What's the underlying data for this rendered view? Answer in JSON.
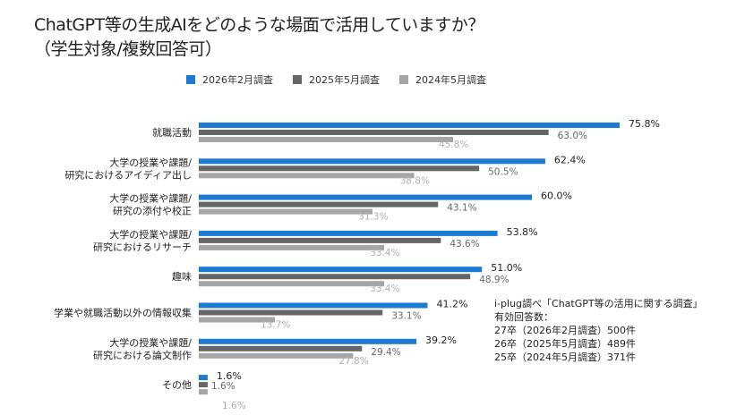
{
  "chart_data": {
    "type": "bar",
    "orientation": "horizontal",
    "title": "ChatGPT等の生成AIをどのような場面で活用していますか？",
    "subtitle": "（学生対象/複数回答可）",
    "categories": [
      [
        "就職活動"
      ],
      [
        "大学の授業や課題/",
        "研究におけるアイディア出し"
      ],
      [
        "大学の授業や課題/",
        "研究の添付や校正"
      ],
      [
        "大学の授業や課題/",
        "研究におけるリサーチ"
      ],
      [
        "趣味"
      ],
      [
        "学業や就職活動以外の情報収集"
      ],
      [
        "大学の授業や課題/",
        "研究における論文制作"
      ],
      [
        "その他"
      ]
    ],
    "series": [
      {
        "name": "2026年2月調査",
        "color": "#1a7ad4",
        "values": [
          75.8,
          62.4,
          60.0,
          53.8,
          51.0,
          41.2,
          39.2,
          1.6
        ]
      },
      {
        "name": "2025年5月調査",
        "color": "#666666",
        "values": [
          63.0,
          50.5,
          43.1,
          43.6,
          48.9,
          33.1,
          29.4,
          1.6
        ]
      },
      {
        "name": "2024年5月調査",
        "color": "#a6a6a6",
        "values": [
          45.8,
          38.8,
          31.3,
          33.4,
          33.4,
          13.7,
          27.8,
          1.6
        ]
      }
    ],
    "value_suffix": "%",
    "legend": "top",
    "grid": false
  },
  "note": [
    "i-plug調べ「ChatGPT等の活用に関する調査」",
    "有効回答数：",
    "27卒（2026年2月調査）500件",
    "26卒（2025年5月調査）489件",
    "25卒（2024年5月調査）371件"
  ]
}
